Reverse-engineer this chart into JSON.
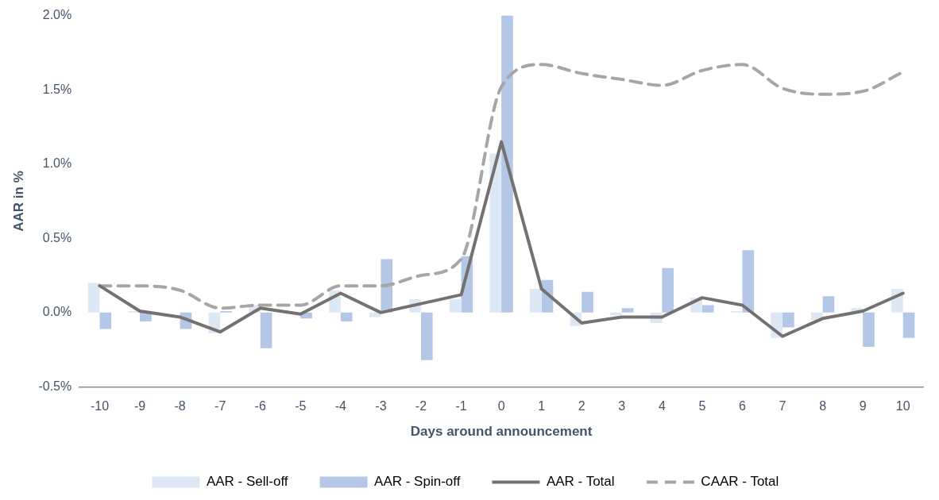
{
  "chart_data": {
    "type": "bar",
    "xlabel": "Days around announcement",
    "ylabel": "AAR in %",
    "categories": [
      "-10",
      "-9",
      "-8",
      "-7",
      "-6",
      "-5",
      "-4",
      "-3",
      "-2",
      "-1",
      "0",
      "1",
      "2",
      "3",
      "4",
      "5",
      "6",
      "7",
      "8",
      "9",
      "10"
    ],
    "series": [
      {
        "name": "AAR - Sell-off",
        "color": "#dde8f5",
        "values": [
          0.2,
          0.01,
          0.0,
          -0.14,
          0.05,
          0.0,
          0.15,
          -0.03,
          0.09,
          0.09,
          1.07,
          0.16,
          -0.09,
          -0.02,
          -0.07,
          0.1,
          0.01,
          -0.17,
          -0.05,
          0.03,
          0.16
        ]
      },
      {
        "name": "AAR - Spin-off",
        "color": "#b4c7e7",
        "values": [
          -0.11,
          -0.06,
          -0.11,
          0.01,
          -0.24,
          -0.04,
          -0.06,
          0.36,
          -0.32,
          0.38,
          2.0,
          0.22,
          0.14,
          0.03,
          0.3,
          0.05,
          0.42,
          -0.1,
          0.11,
          -0.23,
          -0.17
        ]
      },
      {
        "name": "AAR - Total",
        "type": "line",
        "color": "#767171",
        "line_style": "solid",
        "values": [
          0.18,
          0.01,
          -0.03,
          -0.13,
          0.03,
          -0.01,
          0.13,
          0.0,
          0.06,
          0.12,
          1.15,
          0.16,
          -0.07,
          -0.03,
          -0.03,
          0.1,
          0.05,
          -0.16,
          -0.04,
          0.01,
          0.13
        ]
      },
      {
        "name": "CAAR - Total",
        "type": "line",
        "color": "#a6a6a6",
        "line_style": "dashed",
        "values": [
          0.18,
          0.18,
          0.15,
          0.03,
          0.05,
          0.05,
          0.18,
          0.18,
          0.25,
          0.36,
          1.52,
          1.67,
          1.61,
          1.57,
          1.53,
          1.63,
          1.67,
          1.51,
          1.47,
          1.49,
          1.62
        ]
      }
    ],
    "ylim": [
      -0.5,
      2.0
    ],
    "yticks": [
      {
        "value": -0.5,
        "label": "-0.5%"
      },
      {
        "value": 0,
        "label": "0.0%"
      },
      {
        "value": 0.5,
        "label": "0.5%"
      },
      {
        "value": 1.0,
        "label": "1.0%"
      },
      {
        "value": 1.5,
        "label": "1.5%"
      },
      {
        "value": 2.0,
        "label": "2.0%"
      }
    ],
    "grid": false,
    "legend": "bottom",
    "marker": "none"
  }
}
